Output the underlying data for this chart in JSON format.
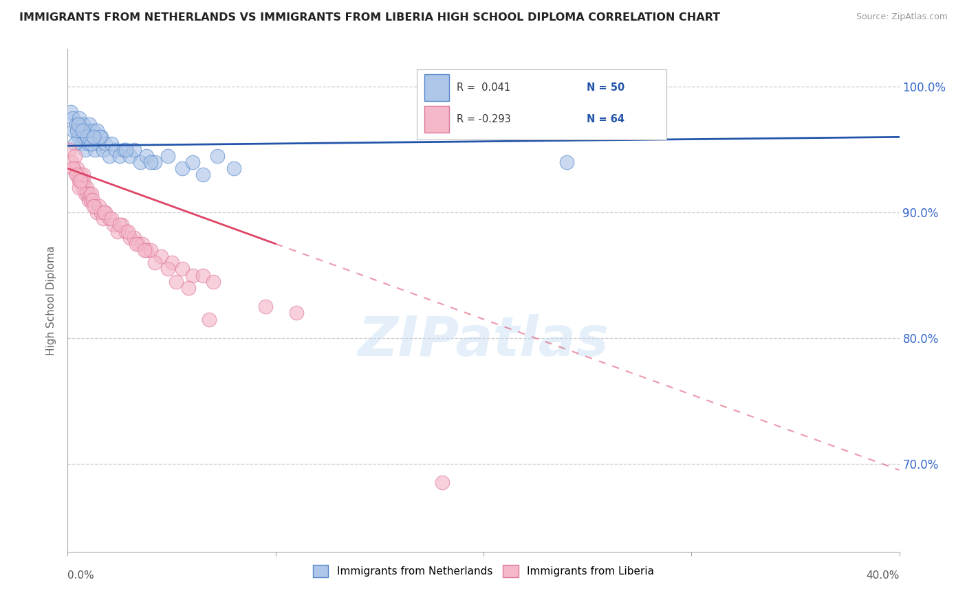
{
  "title": "IMMIGRANTS FROM NETHERLANDS VS IMMIGRANTS FROM LIBERIA HIGH SCHOOL DIPLOMA CORRELATION CHART",
  "source": "Source: ZipAtlas.com",
  "ylabel": "High School Diploma",
  "xlim": [
    0.0,
    40.0
  ],
  "ylim": [
    63.0,
    103.0
  ],
  "yticks": [
    70.0,
    80.0,
    90.0,
    100.0
  ],
  "ytick_labels": [
    "70.0%",
    "80.0%",
    "90.0%",
    "100.0%"
  ],
  "netherlands_color": "#aec6e8",
  "liberia_color": "#f4b8c8",
  "netherlands_edge": "#5588cc",
  "liberia_edge": "#dd7799",
  "trend_netherlands_color": "#2255aa",
  "trend_liberia_color": "#dd4466",
  "legend_r_netherlands": "R =  0.041",
  "legend_n_netherlands": "N = 50",
  "legend_r_liberia": "R = -0.293",
  "legend_n_liberia": "N = 64",
  "watermark": "ZIPatlas",
  "legend_label_netherlands": "Immigrants from Netherlands",
  "legend_label_liberia": "Immigrants from Liberia",
  "netherlands_x": [
    0.15,
    0.25,
    0.3,
    0.4,
    0.5,
    0.55,
    0.6,
    0.65,
    0.7,
    0.75,
    0.8,
    0.85,
    0.9,
    1.0,
    1.05,
    1.1,
    1.2,
    1.3,
    1.4,
    1.5,
    1.6,
    1.7,
    1.8,
    2.0,
    2.1,
    2.3,
    2.5,
    2.7,
    3.0,
    3.2,
    3.5,
    3.8,
    4.2,
    4.8,
    5.5,
    6.0,
    6.5,
    7.2,
    0.35,
    0.45,
    0.95,
    1.15,
    1.55,
    2.8,
    4.0,
    8.0,
    0.5,
    0.7,
    1.25,
    24.0
  ],
  "netherlands_y": [
    98.0,
    97.5,
    96.5,
    97.0,
    96.0,
    97.5,
    96.5,
    95.5,
    96.0,
    97.0,
    96.0,
    95.0,
    96.5,
    95.5,
    97.0,
    96.0,
    96.5,
    95.0,
    96.5,
    95.5,
    96.0,
    95.0,
    95.5,
    94.5,
    95.5,
    95.0,
    94.5,
    95.0,
    94.5,
    95.0,
    94.0,
    94.5,
    94.0,
    94.5,
    93.5,
    94.0,
    93.0,
    94.5,
    95.5,
    96.5,
    96.0,
    95.5,
    96.0,
    95.0,
    94.0,
    93.5,
    97.0,
    96.5,
    96.0,
    94.0
  ],
  "liberia_x": [
    0.1,
    0.2,
    0.3,
    0.35,
    0.4,
    0.45,
    0.5,
    0.55,
    0.6,
    0.65,
    0.7,
    0.75,
    0.8,
    0.85,
    0.9,
    0.95,
    1.0,
    1.05,
    1.1,
    1.15,
    1.2,
    1.3,
    1.4,
    1.5,
    1.6,
    1.7,
    1.8,
    2.0,
    2.2,
    2.4,
    2.6,
    2.8,
    3.0,
    3.2,
    3.4,
    3.6,
    3.8,
    4.0,
    4.5,
    5.0,
    5.5,
    6.0,
    6.5,
    7.0,
    0.25,
    0.55,
    0.75,
    1.25,
    1.75,
    2.1,
    2.5,
    2.9,
    3.3,
    3.7,
    4.2,
    4.8,
    5.2,
    5.8,
    9.5,
    11.0,
    0.4,
    0.6,
    6.8,
    18.0
  ],
  "liberia_y": [
    95.0,
    94.0,
    93.5,
    94.5,
    93.0,
    93.5,
    93.0,
    92.5,
    93.0,
    92.5,
    92.0,
    92.5,
    92.0,
    91.5,
    92.0,
    91.5,
    91.0,
    91.5,
    91.0,
    91.5,
    91.0,
    90.5,
    90.0,
    90.5,
    90.0,
    89.5,
    90.0,
    89.5,
    89.0,
    88.5,
    89.0,
    88.5,
    88.0,
    88.0,
    87.5,
    87.5,
    87.0,
    87.0,
    86.5,
    86.0,
    85.5,
    85.0,
    85.0,
    84.5,
    93.5,
    92.0,
    93.0,
    90.5,
    90.0,
    89.5,
    89.0,
    88.5,
    87.5,
    87.0,
    86.0,
    85.5,
    84.5,
    84.0,
    82.5,
    82.0,
    93.0,
    92.5,
    81.5,
    68.5
  ],
  "neth_trend_y0": 95.3,
  "neth_trend_y1": 96.0,
  "lib_trend_y0": 93.5,
  "lib_trend_y1": 69.5,
  "lib_solid_end_x": 10.0
}
